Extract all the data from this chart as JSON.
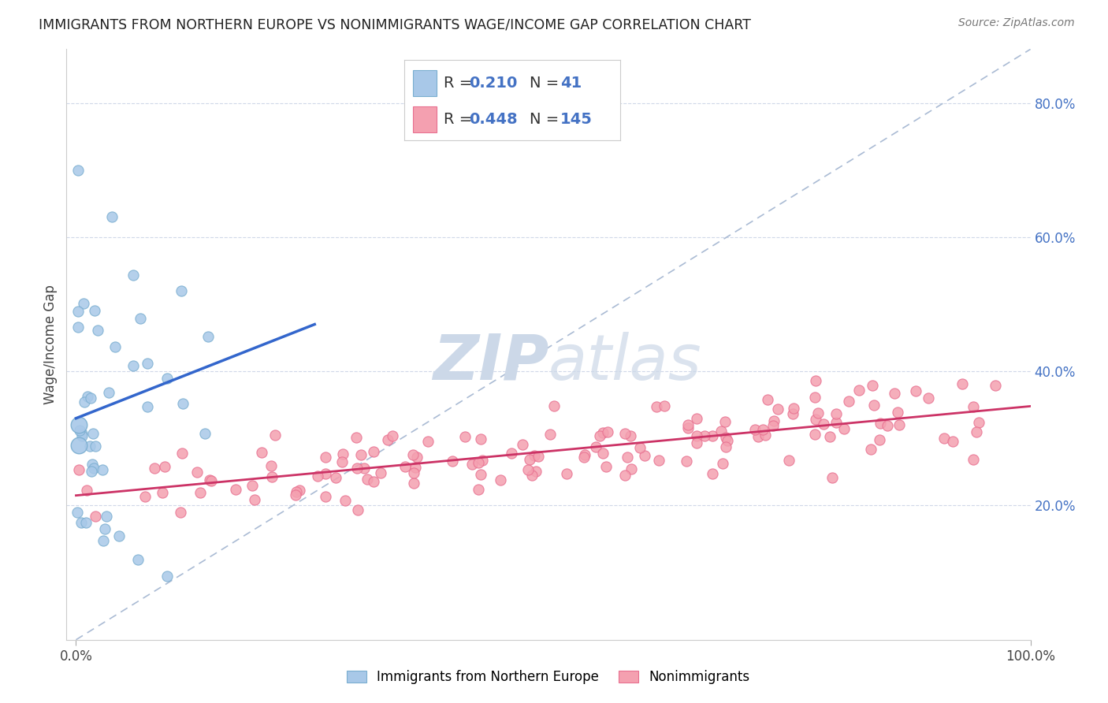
{
  "title": "IMMIGRANTS FROM NORTHERN EUROPE VS NONIMMIGRANTS WAGE/INCOME GAP CORRELATION CHART",
  "source": "Source: ZipAtlas.com",
  "ylabel": "Wage/Income Gap",
  "legend": {
    "blue_R": "0.210",
    "blue_N": "41",
    "pink_R": "0.448",
    "pink_N": "145"
  },
  "blue_color": "#a8c8e8",
  "blue_edge_color": "#7aaed0",
  "blue_line_color": "#3366cc",
  "pink_color": "#f4a0b0",
  "pink_edge_color": "#e87090",
  "pink_line_color": "#cc3366",
  "ref_line_color": "#aabbd4",
  "background_color": "#ffffff",
  "watermark_color": "#ccd8e8",
  "grid_color": "#d0d8e8",
  "right_tick_color": "#4472c4",
  "ylim_max": 0.88,
  "xlim_max": 1.0
}
